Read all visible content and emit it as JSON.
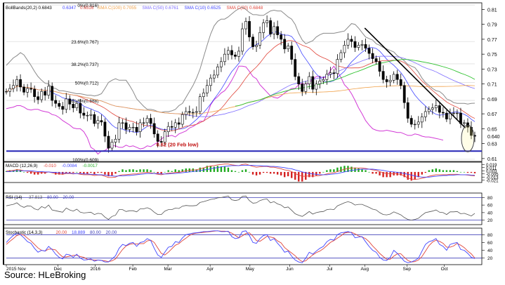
{
  "source_caption": "Source:  HLeBroking",
  "chart_data": {
    "type": "candlestick",
    "instrument_panel": {
      "legend": [
        "BollBands(20,2) 0.6843",
        "0.6347",
        "0.6516",
        "SMA C(100) 0.7055",
        "SMA C(50) 0.6761",
        "SMA C(10) 0.6525",
        "SMA C(20) 0.6848"
      ],
      "y_ticks": [
        0.81,
        0.79,
        0.77,
        0.75,
        0.73,
        0.71,
        0.69,
        0.67,
        0.65,
        0.63,
        0.61
      ],
      "ylim": [
        0.608,
        0.817
      ],
      "last_price_label": "0.640",
      "fib_levels": [
        {
          "label": "0%(0.816)",
          "value": 0.816
        },
        {
          "label": "23.6%(0.767)",
          "value": 0.767
        },
        {
          "label": "38.2%(0.737)",
          "value": 0.737
        },
        {
          "label": "50%(0.712)",
          "value": 0.712
        },
        {
          "label": "61.8%(0.688)",
          "value": 0.688
        },
        {
          "label": "100%(0.609)",
          "value": 0.609
        }
      ],
      "support": {
        "label": "0.62 (20 Feb low)",
        "value": 0.62
      },
      "trendline": [
        {
          "t": 0.765,
          "v": 0.785
        },
        {
          "t": 0.98,
          "v": 0.651
        }
      ],
      "closes": [
        0.7,
        0.704,
        0.708,
        0.716,
        0.706,
        0.699,
        0.704,
        0.703,
        0.693,
        0.689,
        0.7,
        0.695,
        0.707,
        0.688,
        0.684,
        0.68,
        0.676,
        0.69,
        0.683,
        0.678,
        0.684,
        0.671,
        0.668,
        0.668,
        0.669,
        0.657,
        0.661,
        0.659,
        0.64,
        0.624,
        0.632,
        0.636,
        0.658,
        0.658,
        0.649,
        0.652,
        0.652,
        0.646,
        0.658,
        0.658,
        0.664,
        0.657,
        0.643,
        0.633,
        0.632,
        0.646,
        0.653,
        0.652,
        0.658,
        0.656,
        0.669,
        0.673,
        0.672,
        0.672,
        0.673,
        0.693,
        0.698,
        0.708,
        0.718,
        0.722,
        0.733,
        0.74,
        0.75,
        0.755,
        0.749,
        0.747,
        0.754,
        0.784,
        0.794,
        0.773,
        0.76,
        0.762,
        0.779,
        0.792,
        0.795,
        0.777,
        0.787,
        0.776,
        0.77,
        0.757,
        0.761,
        0.743,
        0.72,
        0.71,
        0.7,
        0.71,
        0.72,
        0.703,
        0.71,
        0.714,
        0.716,
        0.723,
        0.725,
        0.724,
        0.743,
        0.752,
        0.762,
        0.77,
        0.767,
        0.759,
        0.762,
        0.763,
        0.758,
        0.751,
        0.744,
        0.74,
        0.727,
        0.716,
        0.713,
        0.715,
        0.723,
        0.716,
        0.708,
        0.685,
        0.664,
        0.656,
        0.656,
        0.659,
        0.666,
        0.673,
        0.676,
        0.678,
        0.681,
        0.672,
        0.671,
        0.663,
        0.671,
        0.671,
        0.671,
        0.657,
        0.658,
        0.652,
        0.641,
        0.64
      ],
      "boll_upper": [
        0.735,
        0.74,
        0.745,
        0.748,
        0.752,
        0.749,
        0.742,
        0.735,
        0.727,
        0.72,
        0.715,
        0.711,
        0.71,
        0.705,
        0.704,
        0.701,
        0.701,
        0.7,
        0.699,
        0.698,
        0.697,
        0.697,
        0.696,
        0.695,
        0.695,
        0.694,
        0.695,
        0.697,
        0.704,
        0.712,
        0.715,
        0.717,
        0.715,
        0.715,
        0.715,
        0.708,
        0.7,
        0.69,
        0.685,
        0.68,
        0.676,
        0.676,
        0.675,
        0.673,
        0.672,
        0.673,
        0.673,
        0.674,
        0.676,
        0.681,
        0.684,
        0.692,
        0.7,
        0.708,
        0.718,
        0.73,
        0.746,
        0.762,
        0.777,
        0.788,
        0.794,
        0.797,
        0.797,
        0.8,
        0.804,
        0.808,
        0.811,
        0.813,
        0.81,
        0.806,
        0.803,
        0.803,
        0.802,
        0.802,
        0.805,
        0.808,
        0.809,
        0.808,
        0.808,
        0.804,
        0.8,
        0.797,
        0.79,
        0.778,
        0.769,
        0.764,
        0.766,
        0.768,
        0.773,
        0.776,
        0.778,
        0.778,
        0.778,
        0.778,
        0.779,
        0.78,
        0.781,
        0.786,
        0.791,
        0.79,
        0.785,
        0.779,
        0.773,
        0.771,
        0.769,
        0.764,
        0.762,
        0.759,
        0.757,
        0.755,
        0.753,
        0.748,
        0.745,
        0.741,
        0.736,
        0.734,
        0.732,
        0.726,
        0.718,
        0.712,
        0.708,
        0.704,
        0.701,
        0.7,
        0.696,
        0.69,
        0.688,
        0.685,
        0.684,
        0.684,
        0.684,
        0.683,
        0.684,
        0.6843
      ],
      "boll_lower": [
        0.677,
        0.678,
        0.679,
        0.681,
        0.681,
        0.679,
        0.676,
        0.675,
        0.676,
        0.676,
        0.674,
        0.673,
        0.672,
        0.669,
        0.668,
        0.665,
        0.661,
        0.658,
        0.655,
        0.651,
        0.65,
        0.65,
        0.646,
        0.638,
        0.625,
        0.622,
        0.616,
        0.62,
        0.621,
        0.624,
        0.627,
        0.627,
        0.625,
        0.625,
        0.628,
        0.626,
        0.627,
        0.625,
        0.623,
        0.624,
        0.627,
        0.626,
        0.629,
        0.632,
        0.636,
        0.64,
        0.64,
        0.641,
        0.639,
        0.643,
        0.645,
        0.647,
        0.651,
        0.653,
        0.656,
        0.66,
        0.66,
        0.669,
        0.682,
        0.689,
        0.693,
        0.698,
        0.701,
        0.707,
        0.715,
        0.724,
        0.734,
        0.734,
        0.733,
        0.727,
        0.72,
        0.717,
        0.709,
        0.704,
        0.699,
        0.694,
        0.692,
        0.691,
        0.694,
        0.698,
        0.701,
        0.704,
        0.704,
        0.709,
        0.711,
        0.709,
        0.712,
        0.716,
        0.72,
        0.72,
        0.718,
        0.72,
        0.728,
        0.734,
        0.726,
        0.719,
        0.709,
        0.704,
        0.697,
        0.688,
        0.678,
        0.67,
        0.661,
        0.655,
        0.65,
        0.648,
        0.647,
        0.647,
        0.648,
        0.647,
        0.646,
        0.645,
        0.645,
        0.643,
        0.641,
        0.641,
        0.643,
        0.642,
        0.64,
        0.639,
        0.639,
        0.638,
        0.637,
        0.636,
        0.6347
      ]
    },
    "macd": {
      "legend": [
        "MACD (12,26,9)",
        "-0.010",
        "-0.0084",
        "-0.0017"
      ],
      "y_ticks": [
        0.019,
        0.011,
        0.003,
        -0.005,
        -0.013,
        -0.021
      ],
      "ylim": [
        -0.025,
        0.023
      ],
      "macd_line": [
        0.002,
        0.003,
        0.004,
        0.006,
        0.005,
        0.003,
        0.002,
        0.001,
        -0.001,
        -0.002,
        -0.001,
        -0.002,
        0.0,
        -0.002,
        -0.004,
        -0.005,
        -0.006,
        -0.004,
        -0.004,
        -0.005,
        -0.004,
        -0.006,
        -0.007,
        -0.007,
        -0.007,
        -0.009,
        -0.008,
        -0.008,
        -0.011,
        -0.014,
        -0.014,
        -0.013,
        -0.009,
        -0.007,
        -0.007,
        -0.006,
        -0.005,
        -0.005,
        -0.003,
        -0.002,
        -0.001,
        -0.002,
        -0.004,
        -0.006,
        -0.007,
        -0.005,
        -0.003,
        -0.003,
        -0.001,
        -0.001,
        0.001,
        0.003,
        0.004,
        0.005,
        0.005,
        0.008,
        0.01,
        0.013,
        0.015,
        0.016,
        0.018,
        0.019,
        0.02,
        0.02,
        0.018,
        0.017,
        0.016,
        0.019,
        0.02,
        0.017,
        0.014,
        0.012,
        0.013,
        0.014,
        0.014,
        0.012,
        0.012,
        0.01,
        0.008,
        0.005,
        0.004,
        0.001,
        -0.004,
        -0.008,
        -0.011,
        -0.011,
        -0.01,
        -0.011,
        -0.01,
        -0.009,
        -0.007,
        -0.005,
        -0.003,
        -0.002,
        0.001,
        0.004,
        0.007,
        0.009,
        0.01,
        0.01,
        0.01,
        0.01,
        0.009,
        0.007,
        0.005,
        0.004,
        0.001,
        -0.002,
        -0.004,
        -0.005,
        -0.004,
        -0.005,
        -0.006,
        -0.01,
        -0.015,
        -0.018,
        -0.019,
        -0.018,
        -0.016,
        -0.014,
        -0.011,
        -0.009,
        -0.007,
        -0.007,
        -0.007,
        -0.007,
        -0.006,
        -0.006,
        -0.006,
        -0.007,
        -0.007,
        -0.008,
        -0.009,
        -0.01
      ],
      "signal_line": [
        0.001,
        0.001,
        0.002,
        0.003,
        0.003,
        0.003,
        0.003,
        0.003,
        0.002,
        0.001,
        0.001,
        0.0,
        0.0,
        -0.001,
        -0.001,
        -0.002,
        -0.003,
        -0.003,
        -0.003,
        -0.004,
        -0.004,
        -0.004,
        -0.005,
        -0.005,
        -0.006,
        -0.006,
        -0.007,
        -0.007,
        -0.008,
        -0.009,
        -0.01,
        -0.011,
        -0.01,
        -0.01,
        -0.009,
        -0.009,
        -0.008,
        -0.007,
        -0.006,
        -0.005,
        -0.004,
        -0.004,
        -0.004,
        -0.004,
        -0.005,
        -0.005,
        -0.005,
        -0.004,
        -0.004,
        -0.003,
        -0.002,
        -0.001,
        0.0,
        0.001,
        0.002,
        0.003,
        0.005,
        0.006,
        0.008,
        0.01,
        0.011,
        0.013,
        0.014,
        0.015,
        0.016,
        0.016,
        0.016,
        0.017,
        0.017,
        0.017,
        0.017,
        0.016,
        0.016,
        0.015,
        0.015,
        0.014,
        0.014,
        0.013,
        0.012,
        0.011,
        0.009,
        0.008,
        0.005,
        0.003,
        0.0,
        -0.002,
        -0.004,
        -0.005,
        -0.006,
        -0.007,
        -0.007,
        -0.007,
        -0.006,
        -0.005,
        -0.004,
        -0.002,
        0.0,
        0.002,
        0.004,
        0.005,
        0.006,
        0.007,
        0.007,
        0.007,
        0.007,
        0.006,
        0.005,
        0.004,
        0.002,
        0.001,
        0.0,
        -0.001,
        -0.002,
        -0.004,
        -0.006,
        -0.008,
        -0.01,
        -0.012,
        -0.013,
        -0.013,
        -0.013,
        -0.012,
        -0.011,
        -0.01,
        -0.009,
        -0.009,
        -0.008,
        -0.008,
        -0.007,
        -0.007,
        -0.007,
        -0.007,
        -0.008,
        -0.0084
      ]
    },
    "rsi": {
      "legend": [
        "RSI (14)",
        "37.813",
        "80.00",
        "20.00"
      ],
      "y_ticks": [
        80,
        60,
        40,
        20
      ],
      "ylim": [
        10,
        90
      ],
      "levels": [
        80,
        20
      ],
      "values": [
        58,
        60,
        62,
        66,
        58,
        54,
        58,
        57,
        50,
        47,
        56,
        52,
        60,
        47,
        45,
        43,
        41,
        52,
        47,
        44,
        49,
        41,
        39,
        40,
        41,
        35,
        38,
        37,
        28,
        22,
        30,
        33,
        48,
        48,
        43,
        45,
        45,
        42,
        50,
        50,
        53,
        49,
        41,
        35,
        35,
        44,
        48,
        48,
        52,
        51,
        57,
        59,
        58,
        58,
        59,
        67,
        69,
        72,
        75,
        76,
        79,
        80,
        82,
        84,
        74,
        72,
        74,
        83,
        84,
        72,
        65,
        66,
        72,
        75,
        76,
        66,
        69,
        63,
        60,
        53,
        55,
        46,
        37,
        33,
        30,
        36,
        43,
        36,
        40,
        42,
        43,
        48,
        49,
        48,
        58,
        62,
        66,
        69,
        66,
        60,
        62,
        62,
        58,
        54,
        49,
        47,
        40,
        35,
        34,
        36,
        42,
        38,
        34,
        27,
        22,
        20,
        22,
        25,
        33,
        40,
        42,
        44,
        47,
        41,
        40,
        35,
        42,
        42,
        43,
        37,
        38,
        35,
        31,
        38
      ]
    },
    "stochastic": {
      "legend": [
        "Stochastic (14,3,3)",
        "20.00",
        "18.889",
        "80.00",
        "20.00"
      ],
      "y_ticks": [
        80,
        60,
        40,
        20
      ],
      "ylim": [
        5,
        95
      ],
      "levels": [
        80,
        20
      ],
      "k_values": [
        60,
        70,
        78,
        85,
        80,
        72,
        62,
        58,
        45,
        35,
        40,
        38,
        50,
        42,
        30,
        22,
        18,
        30,
        28,
        22,
        30,
        20,
        15,
        16,
        18,
        12,
        15,
        14,
        10,
        10,
        18,
        26,
        45,
        55,
        52,
        58,
        60,
        50,
        60,
        62,
        70,
        65,
        45,
        28,
        22,
        35,
        48,
        50,
        62,
        60,
        72,
        80,
        82,
        84,
        85,
        86,
        88,
        88,
        89,
        90,
        90,
        88,
        88,
        89,
        75,
        70,
        72,
        88,
        90,
        78,
        60,
        58,
        70,
        78,
        80,
        65,
        70,
        58,
        48,
        35,
        38,
        25,
        15,
        10,
        8,
        20,
        35,
        30,
        38,
        45,
        50,
        62,
        68,
        66,
        80,
        85,
        86,
        88,
        85,
        72,
        74,
        75,
        62,
        50,
        40,
        35,
        22,
        15,
        14,
        22,
        40,
        32,
        22,
        12,
        8,
        10,
        14,
        20,
        38,
        55,
        62,
        65,
        70,
        55,
        50,
        40,
        55,
        58,
        60,
        42,
        40,
        32,
        22,
        18.889
      ],
      "d_values": [
        55,
        63,
        70,
        78,
        81,
        79,
        71,
        64,
        55,
        46,
        40,
        38,
        43,
        43,
        41,
        31,
        23,
        23,
        25,
        27,
        27,
        24,
        22,
        17,
        16,
        15,
        15,
        14,
        13,
        11,
        13,
        18,
        30,
        42,
        51,
        55,
        57,
        56,
        57,
        57,
        64,
        66,
        60,
        46,
        32,
        28,
        35,
        44,
        53,
        57,
        65,
        71,
        78,
        82,
        84,
        85,
        86,
        87,
        88,
        89,
        90,
        89,
        89,
        88,
        84,
        78,
        72,
        77,
        83,
        85,
        76,
        65,
        63,
        69,
        76,
        74,
        72,
        64,
        59,
        47,
        40,
        33,
        26,
        17,
        11,
        13,
        21,
        28,
        34,
        38,
        44,
        52,
        60,
        65,
        71,
        77,
        84,
        86,
        86,
        82,
        77,
        74,
        70,
        62,
        51,
        42,
        32,
        24,
        17,
        17,
        25,
        31,
        31,
        22,
        14,
        10,
        11,
        15,
        24,
        38,
        52,
        61,
        66,
        63,
        58,
        48,
        48,
        51,
        58,
        53,
        47,
        38,
        31,
        20.0
      ]
    },
    "x_axis_labels": [
      {
        "label": "2015 Nov",
        "t": 0.0
      },
      {
        "label": "Dec",
        "t": 0.11
      },
      {
        "label": "2016",
        "t": 0.19
      },
      {
        "label": "Feb",
        "t": 0.27
      },
      {
        "label": "Mar",
        "t": 0.345
      },
      {
        "label": "Apr",
        "t": 0.435
      },
      {
        "label": "May",
        "t": 0.52
      },
      {
        "label": "Jun",
        "t": 0.605
      },
      {
        "label": "Jul",
        "t": 0.69
      },
      {
        "label": "Aug",
        "t": 0.765
      },
      {
        "label": "Sep",
        "t": 0.855
      },
      {
        "label": "Oct",
        "t": 0.935
      }
    ]
  }
}
